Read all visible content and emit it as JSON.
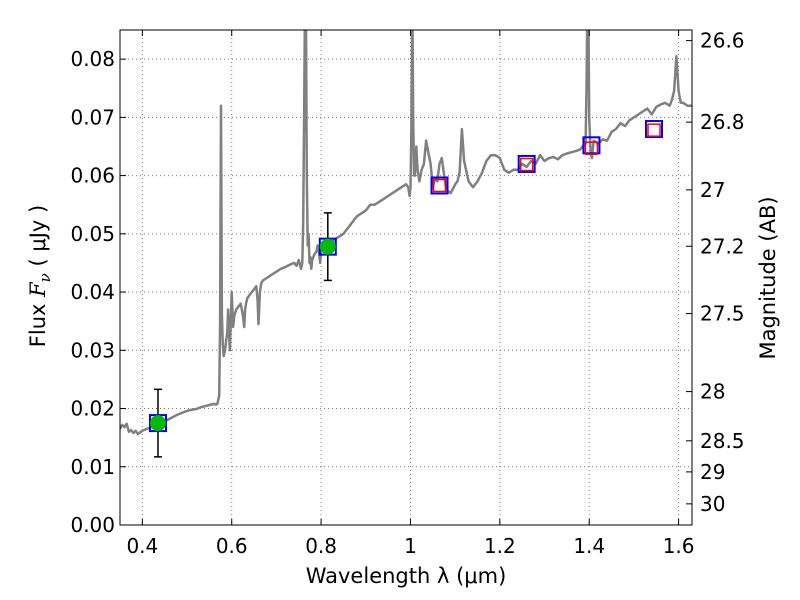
{
  "chart_data": {
    "type": "line",
    "xlabel": "Wavelength  λ (μm)",
    "ylabel_left": {
      "prefix": "Flux  ",
      "symbol": "F",
      "subscript": "ν",
      "unit": "  ( μJy )"
    },
    "ylabel_right": "Magnitude (AB)",
    "xlim": [
      0.35,
      1.63
    ],
    "ylim": [
      0.0,
      0.085
    ],
    "grid": true,
    "x_ticks": [
      0.4,
      0.6,
      0.8,
      1.0,
      1.2,
      1.4,
      1.6
    ],
    "x_tick_labels": [
      "0.4",
      "0.6",
      "0.8",
      "1",
      "1.2",
      "1.4",
      "1.6"
    ],
    "y_ticks": [
      0.0,
      0.01,
      0.02,
      0.03,
      0.04,
      0.05,
      0.06,
      0.07,
      0.08
    ],
    "y_tick_labels": [
      "0.00",
      "0.01",
      "0.02",
      "0.03",
      "0.04",
      "0.05",
      "0.06",
      "0.07",
      "0.08"
    ],
    "right_ticks": [
      {
        "label": "26.6",
        "value": 26.6
      },
      {
        "label": "26.8",
        "value": 26.8
      },
      {
        "label": "27",
        "value": 27.0
      },
      {
        "label": "27.2",
        "value": 27.2
      },
      {
        "label": "27.5",
        "value": 27.5
      },
      {
        "label": "28",
        "value": 28.0
      },
      {
        "label": "28.5",
        "value": 28.5
      },
      {
        "label": "29",
        "value": 29.0
      },
      {
        "label": "30",
        "value": 30.0
      }
    ],
    "colors": {
      "spectrum": "#808080",
      "model_box": "#0000ff",
      "observed_point": "#00bb00",
      "upper_point_box": "#ff0000",
      "error_bar": "#000000",
      "grid": "#7a7a7a"
    },
    "series": [
      {
        "kind": "spectrum",
        "x": [
          0.35,
          0.355,
          0.36,
          0.365,
          0.37,
          0.375,
          0.38,
          0.385,
          0.39,
          0.395,
          0.4,
          0.41,
          0.42,
          0.43,
          0.44,
          0.45,
          0.46,
          0.47,
          0.48,
          0.49,
          0.5,
          0.51,
          0.52,
          0.53,
          0.54,
          0.55,
          0.56,
          0.565,
          0.568,
          0.57,
          0.572,
          0.574,
          0.576,
          0.578,
          0.58,
          0.582,
          0.585,
          0.588,
          0.59,
          0.592,
          0.594,
          0.596,
          0.598,
          0.6,
          0.603,
          0.606,
          0.61,
          0.62,
          0.625,
          0.628,
          0.63,
          0.632,
          0.635,
          0.64,
          0.645,
          0.65,
          0.655,
          0.658,
          0.66,
          0.663,
          0.666,
          0.67,
          0.68,
          0.69,
          0.7,
          0.71,
          0.72,
          0.73,
          0.74,
          0.745,
          0.75,
          0.755,
          0.758,
          0.76,
          0.762,
          0.764,
          0.766,
          0.768,
          0.77,
          0.772,
          0.774,
          0.776,
          0.778,
          0.78,
          0.785,
          0.79,
          0.792,
          0.795,
          0.798,
          0.8,
          0.803,
          0.806,
          0.81,
          0.82,
          0.83,
          0.84,
          0.85,
          0.86,
          0.87,
          0.88,
          0.89,
          0.9,
          0.91,
          0.92,
          0.93,
          0.94,
          0.95,
          0.96,
          0.97,
          0.98,
          0.99,
          0.995,
          0.998,
          1.0,
          1.002,
          1.004,
          1.006,
          1.008,
          1.01,
          1.013,
          1.016,
          1.02,
          1.025,
          1.03,
          1.035,
          1.04,
          1.045,
          1.05,
          1.055,
          1.06,
          1.065,
          1.07,
          1.08,
          1.09,
          1.1,
          1.105,
          1.11,
          1.115,
          1.12,
          1.13,
          1.14,
          1.15,
          1.16,
          1.17,
          1.18,
          1.19,
          1.2,
          1.21,
          1.22,
          1.23,
          1.24,
          1.25,
          1.26,
          1.27,
          1.28,
          1.29,
          1.3,
          1.31,
          1.32,
          1.33,
          1.34,
          1.35,
          1.36,
          1.37,
          1.38,
          1.385,
          1.388,
          1.39,
          1.392,
          1.394,
          1.396,
          1.398,
          1.4,
          1.403,
          1.406,
          1.41,
          1.42,
          1.43,
          1.44,
          1.45,
          1.46,
          1.47,
          1.48,
          1.49,
          1.5,
          1.51,
          1.52,
          1.53,
          1.54,
          1.55,
          1.56,
          1.57,
          1.58,
          1.585,
          1.59,
          1.595,
          1.6,
          1.605,
          1.61,
          1.62,
          1.63
        ],
        "y": [
          0.0165,
          0.0172,
          0.0168,
          0.0174,
          0.016,
          0.0163,
          0.0158,
          0.0162,
          0.0156,
          0.0159,
          0.0162,
          0.0165,
          0.0168,
          0.0172,
          0.0175,
          0.0178,
          0.0182,
          0.0186,
          0.019,
          0.0193,
          0.0196,
          0.0198,
          0.0199,
          0.0202,
          0.0204,
          0.0206,
          0.0208,
          0.0207,
          0.0208,
          0.0215,
          0.0222,
          0.035,
          0.072,
          0.036,
          0.031,
          0.029,
          0.03,
          0.032,
          0.033,
          0.037,
          0.033,
          0.03,
          0.035,
          0.04,
          0.034,
          0.036,
          0.037,
          0.038,
          0.036,
          0.034,
          0.037,
          0.038,
          0.039,
          0.0395,
          0.04,
          0.0405,
          0.041,
          0.0385,
          0.0345,
          0.04,
          0.0415,
          0.042,
          0.0425,
          0.043,
          0.0435,
          0.044,
          0.0443,
          0.0447,
          0.045,
          0.0445,
          0.0455,
          0.044,
          0.045,
          0.052,
          0.07,
          0.09,
          0.09,
          0.06,
          0.048,
          0.05,
          0.045,
          0.046,
          0.044,
          0.0455,
          0.0465,
          0.047,
          0.048,
          0.047,
          0.045,
          0.0475,
          0.048,
          0.047,
          0.0478,
          0.048,
          0.049,
          0.0495,
          0.05,
          0.051,
          0.052,
          0.053,
          0.0535,
          0.054,
          0.055,
          0.055,
          0.0555,
          0.056,
          0.0565,
          0.057,
          0.0575,
          0.058,
          0.0585,
          0.058,
          0.0565,
          0.058,
          0.068,
          0.09,
          0.07,
          0.06,
          0.06,
          0.065,
          0.061,
          0.059,
          0.061,
          0.062,
          0.066,
          0.064,
          0.062,
          0.058,
          0.0595,
          0.059,
          0.062,
          0.063,
          0.0575,
          0.057,
          0.0585,
          0.059,
          0.0605,
          0.068,
          0.0625,
          0.059,
          0.058,
          0.059,
          0.0605,
          0.0625,
          0.0635,
          0.0635,
          0.063,
          0.061,
          0.0605,
          0.061,
          0.061,
          0.062,
          0.0615,
          0.0625,
          0.062,
          0.0635,
          0.0625,
          0.063,
          0.0632,
          0.0628,
          0.0635,
          0.0638,
          0.064,
          0.0642,
          0.0645,
          0.065,
          0.0652,
          0.066,
          0.0655,
          0.075,
          0.09,
          0.09,
          0.07,
          0.064,
          0.063,
          0.066,
          0.0655,
          0.0662,
          0.066,
          0.0675,
          0.068,
          0.069,
          0.0685,
          0.0695,
          0.07,
          0.0705,
          0.071,
          0.0715,
          0.0705,
          0.0718,
          0.0722,
          0.0725,
          0.072,
          0.073,
          0.0745,
          0.0805,
          0.0745,
          0.0725,
          0.0725,
          0.072,
          0.072
        ]
      },
      {
        "kind": "model_photometry",
        "points": [
          {
            "x": 0.435,
            "y": 0.0175
          },
          {
            "x": 0.815,
            "y": 0.0478
          },
          {
            "x": 1.065,
            "y": 0.0583
          },
          {
            "x": 1.26,
            "y": 0.062
          },
          {
            "x": 1.405,
            "y": 0.0652
          },
          {
            "x": 1.545,
            "y": 0.068
          }
        ]
      },
      {
        "kind": "observed_detections",
        "points": [
          {
            "x": 0.435,
            "y": 0.0175,
            "err": 0.0058
          },
          {
            "x": 0.815,
            "y": 0.0478,
            "err": 0.0058
          }
        ]
      },
      {
        "kind": "observed_open",
        "points": [
          {
            "x": 1.065,
            "y": 0.0583
          },
          {
            "x": 1.26,
            "y": 0.0619
          },
          {
            "x": 1.405,
            "y": 0.0647
          },
          {
            "x": 1.545,
            "y": 0.0678
          }
        ]
      }
    ]
  }
}
